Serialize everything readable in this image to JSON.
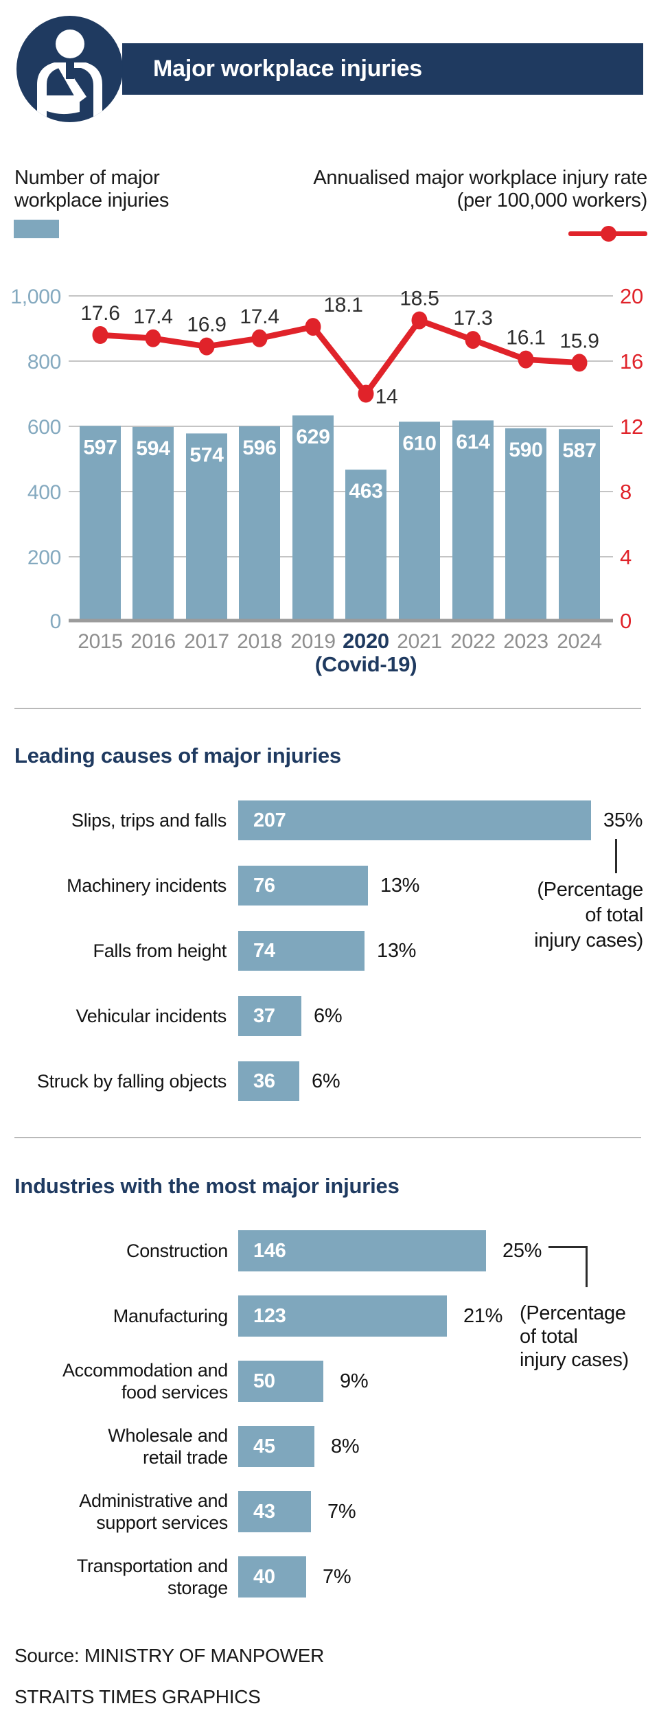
{
  "colors": {
    "navy": "#1f3a60",
    "bar_blue": "#7fa7bd",
    "red": "#e0232a",
    "year_gray": "#8e8e8e",
    "axis_blue": "#84a9bf",
    "grid_gray": "#c4c4c4",
    "baseline_gray": "#9b9b9b"
  },
  "header": {
    "title": "Major workplace injuries",
    "icon": "injured-worker-icon"
  },
  "legend": {
    "bars": {
      "line1": "Number of major",
      "line2": "workplace injuries"
    },
    "line": {
      "line1": "Annualised major workplace injury rate",
      "line2": "(per 100,000 workers)"
    }
  },
  "chart_data": [
    {
      "type": "bar",
      "subtype": "combo-bar-line",
      "categories": [
        "2015",
        "2016",
        "2017",
        "2018",
        "2019",
        "2020",
        "2021",
        "2022",
        "2023",
        "2024"
      ],
      "highlight_category": "2020",
      "highlight_note": "(Covid-19)",
      "series": [
        {
          "name": "Number of major workplace injuries",
          "type": "bar",
          "axis": "left",
          "values": [
            597,
            594,
            574,
            596,
            629,
            463,
            610,
            614,
            590,
            587
          ]
        },
        {
          "name": "Annualised major workplace injury rate (per 100,000 workers)",
          "type": "line",
          "axis": "right",
          "values": [
            17.6,
            17.4,
            16.9,
            17.4,
            18.1,
            14,
            18.5,
            17.3,
            16.1,
            15.9
          ]
        }
      ],
      "left_axis": {
        "ticks": [
          "1,000",
          "800",
          "600",
          "400",
          "200",
          "0"
        ],
        "min": 0,
        "max": 1000
      },
      "right_axis": {
        "ticks": [
          "20",
          "16",
          "12",
          "8",
          "4",
          "0"
        ],
        "min": 0,
        "max": 20
      },
      "grid": true,
      "legend_position": "top"
    },
    {
      "type": "bar",
      "orientation": "horizontal",
      "title": "Leading causes of major injuries",
      "categories": [
        "Slips, trips and falls",
        "Machinery incidents",
        "Falls from height",
        "Vehicular incidents",
        "Struck by falling objects"
      ],
      "values": [
        207,
        76,
        74,
        37,
        36
      ],
      "percent_labels": [
        "35%",
        "13%",
        "13%",
        "6%",
        "6%"
      ],
      "annotation": [
        "(Percentage",
        "of total",
        "injury cases)"
      ],
      "xlim": [
        0,
        230
      ]
    },
    {
      "type": "bar",
      "orientation": "horizontal",
      "title": "Industries with the most major injuries",
      "categories": [
        [
          "Construction"
        ],
        [
          "Manufacturing"
        ],
        [
          "Accommodation and",
          "food services"
        ],
        [
          "Wholesale and",
          "retail trade"
        ],
        [
          "Administrative and",
          "support services"
        ],
        [
          "Transportation and",
          "storage"
        ]
      ],
      "values": [
        146,
        123,
        50,
        45,
        43,
        40
      ],
      "percent_labels": [
        "25%",
        "21%",
        "9%",
        "8%",
        "7%",
        "7%"
      ],
      "annotation": [
        "(Percentage",
        "of total",
        "injury cases)"
      ],
      "xlim": [
        0,
        230
      ]
    }
  ],
  "footer": {
    "source": "Source: MINISTRY OF MANPOWER",
    "credit": "STRAITS TIMES GRAPHICS"
  }
}
